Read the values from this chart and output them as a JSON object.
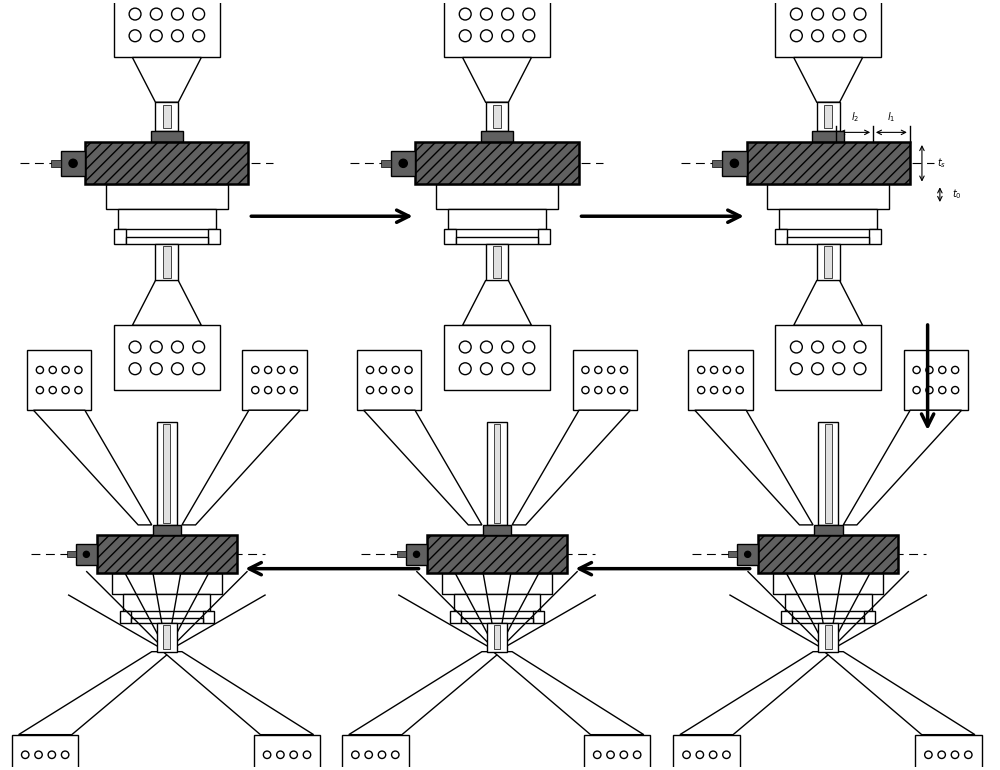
{
  "bg_color": "#ffffff",
  "lc": "#000000",
  "dark_gray": "#606060",
  "light_gray": "#e0e0e0",
  "figsize": [
    10.0,
    7.7
  ],
  "dpi": 100,
  "lw": 1.0,
  "lw2": 1.8
}
